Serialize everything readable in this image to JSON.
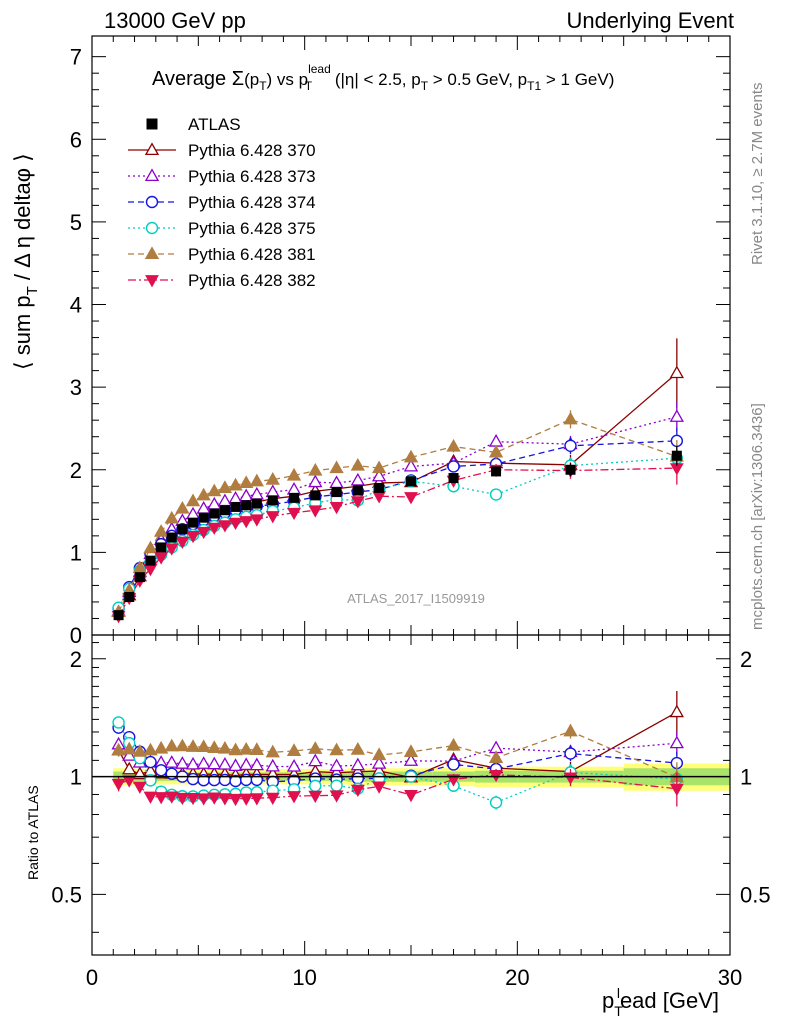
{
  "header": {
    "left": "13000 GeV pp",
    "right": "Underlying Event"
  },
  "side_labels": {
    "rivet": "Rivet 3.1.10, ≥ 2.7M events",
    "mcplots": "mcplots.cern.ch [arXiv:1306.3436]"
  },
  "analysis_id": "ATLAS_2017_I1509919",
  "chart_data": [
    {
      "type": "scatter",
      "panel": "main",
      "title": "Average Σ(p_T) vs p_T^lead (|η| < 2.5, p_T > 0.5 GeV, p_T1 > 1 GeV)",
      "title_parts": {
        "t1": "Average ",
        "sigma": "Σ",
        "t2": "(p",
        "sub1": "T",
        "t3": ") vs p",
        "sup": "lead",
        "sub2": "T",
        "t4": " (|η| < 2.5, p",
        "sub3": "T",
        "t5": " > 0.5 GeV, p",
        "sub4": "T1",
        "t6": " > 1 GeV)"
      },
      "ylabel": "⟨ sum p_T / Δη deltaφ ⟩",
      "ylabel_parts": {
        "a": "⟨ sum p",
        "sub": "T",
        "b": " / Δ η deltaφ ⟩"
      },
      "xlim": [
        0,
        30
      ],
      "ylim": [
        0,
        7.25
      ],
      "yticks": [
        0,
        1,
        2,
        3,
        4,
        5,
        6,
        7
      ],
      "legend_position": "top-left",
      "x": [
        1.25,
        1.75,
        2.25,
        2.75,
        3.25,
        3.75,
        4.25,
        4.75,
        5.25,
        5.75,
        6.25,
        6.75,
        7.25,
        7.75,
        8.5,
        9.5,
        10.5,
        11.5,
        12.5,
        13.5,
        15,
        17,
        19,
        22.5,
        27.5
      ],
      "series": [
        {
          "name": "ATLAS",
          "style": "data",
          "color": "#000000",
          "marker": "square",
          "values": [
            0.24,
            0.46,
            0.7,
            0.9,
            1.06,
            1.18,
            1.28,
            1.36,
            1.42,
            1.47,
            1.51,
            1.55,
            1.57,
            1.59,
            1.63,
            1.66,
            1.69,
            1.73,
            1.75,
            1.78,
            1.86,
            1.9,
            1.98,
            2.0,
            2.17
          ],
          "errors": [
            0.01,
            0.02,
            0.02,
            0.02,
            0.02,
            0.02,
            0.02,
            0.02,
            0.02,
            0.02,
            0.02,
            0.02,
            0.02,
            0.02,
            0.02,
            0.03,
            0.03,
            0.03,
            0.03,
            0.04,
            0.04,
            0.05,
            0.06,
            0.08,
            0.12
          ]
        },
        {
          "name": "Pythia 6.428 370",
          "style": "solid",
          "color": "#8b0000",
          "marker": "triangle-open",
          "values": [
            0.28,
            0.48,
            0.71,
            0.93,
            1.08,
            1.2,
            1.3,
            1.38,
            1.44,
            1.49,
            1.53,
            1.56,
            1.59,
            1.61,
            1.65,
            1.68,
            1.74,
            1.77,
            1.8,
            1.84,
            1.85,
            2.1,
            2.08,
            2.06,
            3.17
          ],
          "errors": [
            0.01,
            0.01,
            0.01,
            0.01,
            0.01,
            0.01,
            0.02,
            0.02,
            0.02,
            0.02,
            0.02,
            0.02,
            0.02,
            0.02,
            0.02,
            0.03,
            0.03,
            0.03,
            0.04,
            0.05,
            0.05,
            0.07,
            0.08,
            0.12,
            0.42
          ]
        },
        {
          "name": "Pythia 6.428 373",
          "style": "dotted",
          "color": "#8b00cc",
          "marker": "triangle-open",
          "values": [
            0.29,
            0.52,
            0.76,
            0.98,
            1.15,
            1.28,
            1.38,
            1.46,
            1.53,
            1.58,
            1.62,
            1.65,
            1.68,
            1.7,
            1.73,
            1.76,
            1.85,
            1.84,
            1.87,
            1.92,
            2.04,
            2.08,
            2.34,
            2.31,
            2.64
          ],
          "errors": [
            0.01,
            0.01,
            0.01,
            0.01,
            0.01,
            0.01,
            0.02,
            0.02,
            0.02,
            0.02,
            0.02,
            0.02,
            0.02,
            0.02,
            0.02,
            0.03,
            0.03,
            0.03,
            0.04,
            0.05,
            0.05,
            0.07,
            0.08,
            0.1,
            0.18
          ]
        },
        {
          "name": "Pythia 6.428 374",
          "style": "dashed",
          "color": "#1515e0",
          "marker": "circle-open",
          "values": [
            0.32,
            0.58,
            0.81,
            0.98,
            1.1,
            1.2,
            1.28,
            1.34,
            1.39,
            1.44,
            1.48,
            1.51,
            1.54,
            1.56,
            1.58,
            1.62,
            1.67,
            1.7,
            1.73,
            1.76,
            1.87,
            2.04,
            2.07,
            2.29,
            2.35
          ],
          "errors": [
            0.01,
            0.01,
            0.01,
            0.01,
            0.01,
            0.01,
            0.01,
            0.01,
            0.01,
            0.02,
            0.02,
            0.02,
            0.02,
            0.02,
            0.02,
            0.03,
            0.03,
            0.03,
            0.04,
            0.05,
            0.05,
            0.06,
            0.07,
            0.1,
            0.16
          ]
        },
        {
          "name": "Pythia 6.428 375",
          "style": "dotted",
          "color": "#00cfc0",
          "marker": "circle-open",
          "values": [
            0.33,
            0.56,
            0.78,
            0.88,
            0.97,
            1.06,
            1.14,
            1.21,
            1.27,
            1.32,
            1.36,
            1.4,
            1.43,
            1.45,
            1.5,
            1.54,
            1.6,
            1.64,
            1.63,
            1.76,
            1.86,
            1.8,
            1.7,
            2.05,
            2.14
          ],
          "errors": [
            0.01,
            0.01,
            0.01,
            0.01,
            0.01,
            0.01,
            0.01,
            0.01,
            0.01,
            0.02,
            0.02,
            0.02,
            0.02,
            0.02,
            0.02,
            0.03,
            0.03,
            0.03,
            0.04,
            0.05,
            0.05,
            0.06,
            0.07,
            0.1,
            0.16
          ]
        },
        {
          "name": "Pythia 6.428 381",
          "style": "dashed",
          "color": "#b07d40",
          "marker": "triangle-filled",
          "values": [
            0.28,
            0.54,
            0.81,
            1.05,
            1.25,
            1.41,
            1.53,
            1.62,
            1.69,
            1.74,
            1.78,
            1.81,
            1.84,
            1.86,
            1.88,
            1.93,
            1.99,
            2.02,
            2.05,
            2.02,
            2.15,
            2.28,
            2.21,
            2.61,
            2.16
          ],
          "errors": [
            0.01,
            0.01,
            0.01,
            0.01,
            0.01,
            0.01,
            0.02,
            0.02,
            0.02,
            0.02,
            0.02,
            0.02,
            0.02,
            0.02,
            0.02,
            0.03,
            0.03,
            0.03,
            0.04,
            0.05,
            0.05,
            0.07,
            0.08,
            0.11,
            0.2
          ]
        },
        {
          "name": "Pythia 6.428 382",
          "style": "dashdot",
          "color": "#e0104e",
          "marker": "triangle-down-filled",
          "values": [
            0.23,
            0.45,
            0.66,
            0.8,
            0.94,
            1.05,
            1.13,
            1.2,
            1.25,
            1.3,
            1.33,
            1.36,
            1.38,
            1.4,
            1.44,
            1.48,
            1.51,
            1.55,
            1.62,
            1.68,
            1.67,
            1.87,
            2.0,
            1.99,
            2.02
          ],
          "errors": [
            0.01,
            0.01,
            0.01,
            0.01,
            0.01,
            0.01,
            0.01,
            0.01,
            0.01,
            0.02,
            0.02,
            0.02,
            0.02,
            0.02,
            0.02,
            0.03,
            0.03,
            0.03,
            0.04,
            0.05,
            0.05,
            0.06,
            0.07,
            0.1,
            0.2
          ]
        }
      ]
    },
    {
      "type": "scatter",
      "panel": "ratio",
      "ylabel": "Ratio to ATLAS",
      "xlabel": "p_T^lead [GeV]",
      "xlabel_parts": {
        "a": "p",
        "sub": "T",
        "sup": "l",
        "b": "ead [GeV]"
      },
      "xlim": [
        0,
        30
      ],
      "xticks": [
        0,
        10,
        20,
        30
      ],
      "ylim": [
        0.35,
        2.3
      ],
      "yticks": [
        0.5,
        1,
        2
      ],
      "reference_line": 1,
      "uncertainty_band": {
        "inner_color": "#a9e36a",
        "outer_color": "#ffff7a",
        "x_edges": [
          1,
          1.5,
          2,
          2.5,
          3,
          3.5,
          4,
          4.5,
          5,
          5.5,
          6,
          6.5,
          7,
          7.5,
          8,
          9,
          10,
          11,
          12,
          13,
          14,
          16,
          18,
          20,
          25,
          30
        ],
        "inner": [
          0.03,
          0.03,
          0.025,
          0.025,
          0.025,
          0.025,
          0.025,
          0.025,
          0.025,
          0.025,
          0.025,
          0.025,
          0.025,
          0.025,
          0.025,
          0.025,
          0.025,
          0.025,
          0.03,
          0.03,
          0.03,
          0.03,
          0.035,
          0.035,
          0.05
        ],
        "outer": [
          0.05,
          0.05,
          0.045,
          0.045,
          0.045,
          0.045,
          0.045,
          0.045,
          0.045,
          0.045,
          0.045,
          0.045,
          0.045,
          0.045,
          0.045,
          0.045,
          0.045,
          0.045,
          0.05,
          0.05,
          0.05,
          0.055,
          0.06,
          0.06,
          0.08
        ]
      }
    }
  ]
}
